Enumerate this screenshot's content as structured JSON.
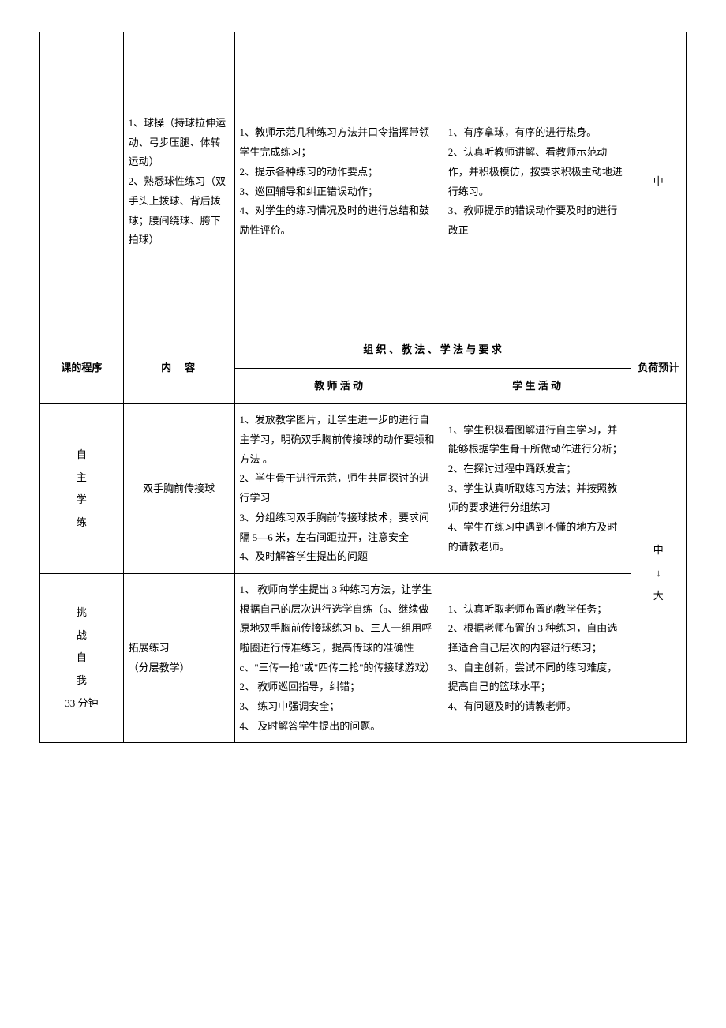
{
  "row1": {
    "content": "1、球操（持球拉伸运动、弓步压腿、体转运动）\n2、熟悉球性练习（双手头上拨球、背后拨球；腰间绕球、胯下拍球）",
    "teacher": "1、教师示范几种练习方法并口令指挥带领学生完成练习；\n2、提示各种练习的动作要点；\n3、巡回辅导和纠正错误动作；\n4、对学生的练习情况及时的进行总结和鼓励性评价。",
    "student": "1、有序拿球，有序的进行热身。\n2、认真听教师讲解、看教师示范动作，并积极模仿，按要求积极主动地进行练习。\n3、教师提示的错误动作要及时的进行改正",
    "load": "中"
  },
  "headers": {
    "procedure": "课的程序",
    "content": "内　容",
    "method_group": "组 织 、 教 法 、 学 法 与 要 求",
    "teacher": "教 师 活 动",
    "student": "学 生 活 动",
    "load": "负荷预计"
  },
  "row2": {
    "procedure": "自\n主\n学\n练",
    "content": "双手胸前传接球",
    "teacher": "1、发放教学图片，让学生进一步的进行自主学习，明确双手胸前传接球的动作要领和方法 。\n2、学生骨干进行示范，师生共同探讨的进行学习\n3、分组练习双手胸前传接球技术，要求间隔 5—6 米，左右间距拉开，注意安全\n4、及时解答学生提出的问题",
    "student": "1、学生积极看图解进行自主学习，并能够根据学生骨干所做动作进行分析；\n2、在探讨过程中踊跃发言；\n3、学生认真听取练习方法；并按照教师的要求进行分组练习\n4、学生在练习中遇到不懂的地方及时的请教老师。"
  },
  "row3": {
    "procedure": "挑\n战\n自\n我\n33 分钟",
    "content": "拓展练习\n（分层教学）",
    "teacher": "1、 教师向学生提出 3 种练习方法，让学生根据自己的层次进行选学自练（a、继续做原地双手胸前传接球练习 b、三人一组用呼啦圈进行传准练习，提高传球的准确性 c、\"三传一抢\"或\"四传二抢\"的传接球游戏）\n2、 教师巡回指导，纠错；\n3、 练习中强调安全；\n4、 及时解答学生提出的问题。",
    "student": "1、认真听取老师布置的教学任务；\n2、根据老师布置的 3 种练习，自由选择适合自己层次的内容进行练习；\n3、自主创新，尝试不同的练习难度，提高自己的篮球水平；\n4、有问题及时的请教老师。"
  },
  "load_combined": "中\n↓\n大"
}
